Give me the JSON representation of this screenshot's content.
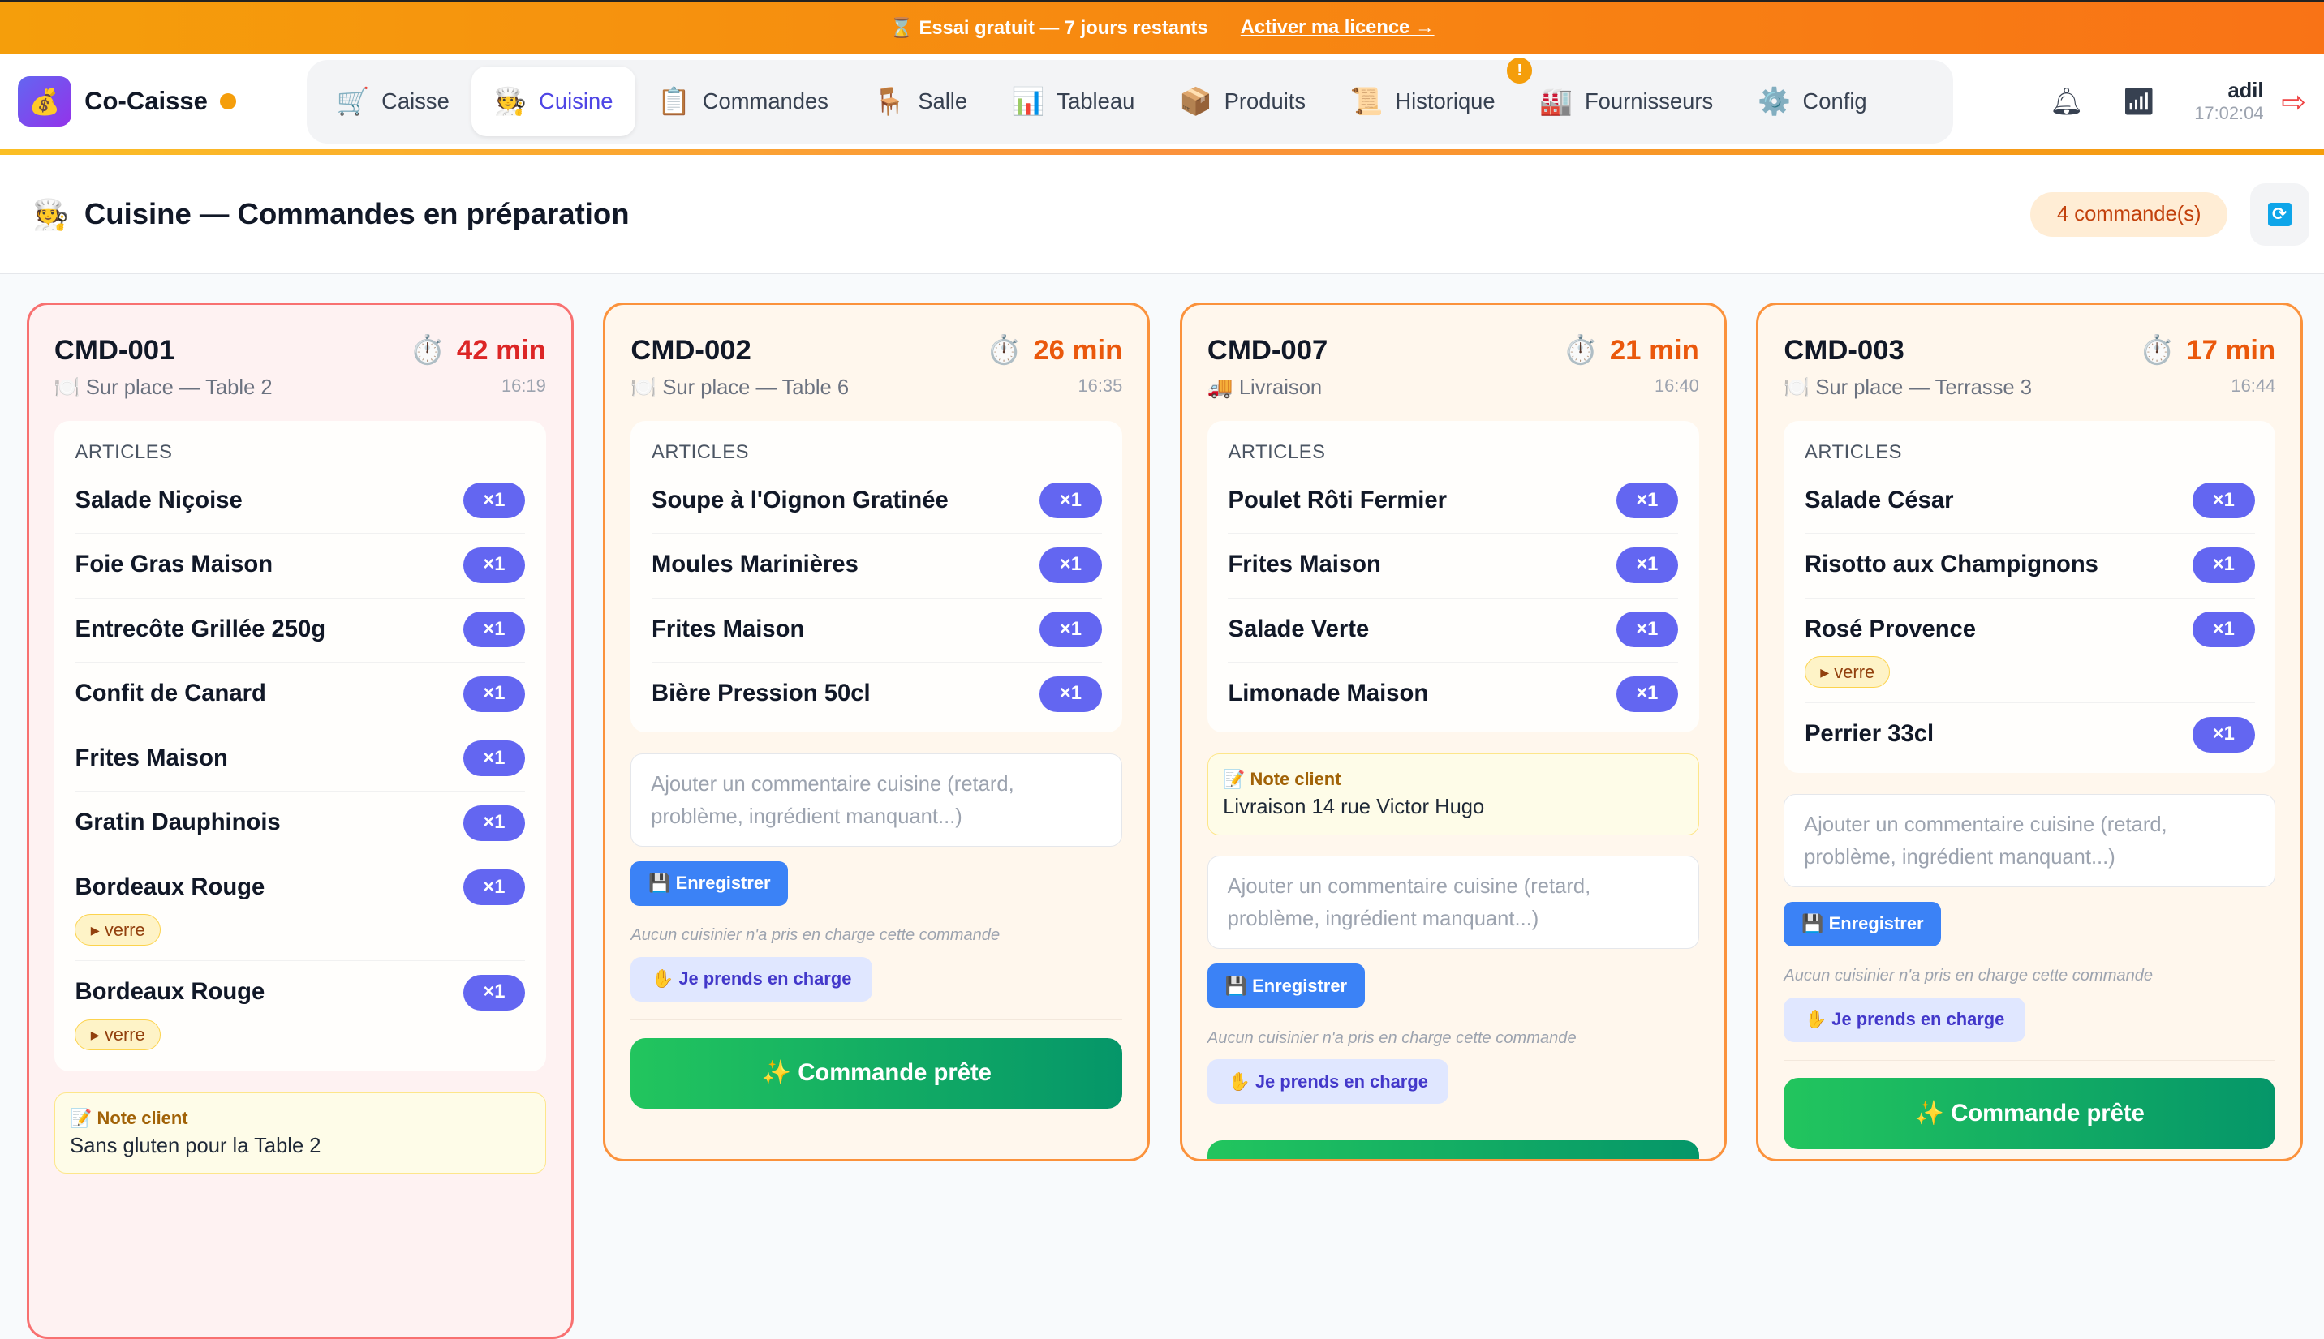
{
  "banner": {
    "text": "⌛ Essai gratuit — 7 jours restants",
    "link": "Activer ma licence →"
  },
  "app": {
    "logo_icon": "💰",
    "name": "Co-Caisse"
  },
  "nav": [
    {
      "icon": "🛒",
      "label": "Caisse"
    },
    {
      "icon": "🧑‍🍳",
      "label": "Cuisine",
      "active": true
    },
    {
      "icon": "📋",
      "label": "Commandes"
    },
    {
      "icon": "🪑",
      "label": "Salle"
    },
    {
      "icon": "📊",
      "label": "Tableau"
    },
    {
      "icon": "📦",
      "label": "Produits"
    },
    {
      "icon": "📜",
      "label": "Historique",
      "alert": "!"
    },
    {
      "icon": "🏭",
      "label": "Fournisseurs"
    },
    {
      "icon": "⚙️",
      "label": "Config"
    }
  ],
  "user": {
    "name": "adil",
    "time": "17:02:04",
    "bell_icon": "bell-icon",
    "stats_icon": "bar-chart-icon",
    "logout_icon": "logout-icon"
  },
  "page": {
    "icon": "🧑‍🍳",
    "title": "Cuisine — Commandes en préparation",
    "count": "4 commande(s)",
    "refresh_icon": "🔄"
  },
  "labels": {
    "articles": "ARTICLES",
    "note": "📝 Note client",
    "placeholder": "Ajouter un commentaire cuisine (retard, problème, ingrédient manquant...)",
    "save": "💾 Enregistrer",
    "none": "Aucun cuisinier n'a pris en charge cette commande",
    "take": "✋ Je prends en charge",
    "ready": "✨ Commande prête",
    "timer_icon": "⏱️"
  },
  "colors": {
    "accent": "#6366f1",
    "late": "#dc2626",
    "warn": "#ea580c",
    "ready": "#22c55e",
    "save": "#3b82f6"
  },
  "orders": [
    {
      "id": "CMD-001",
      "elapsed": "42 min",
      "late": true,
      "type_icon": "🍽️",
      "type": "Sur place — Table 2",
      "time": "16:19",
      "items": [
        {
          "name": "Salade Niçoise",
          "qty": "×1"
        },
        {
          "name": "Foie Gras Maison",
          "qty": "×1"
        },
        {
          "name": "Entrecôte Grillée 250g",
          "qty": "×1"
        },
        {
          "name": "Confit de Canard",
          "qty": "×1"
        },
        {
          "name": "Frites Maison",
          "qty": "×1"
        },
        {
          "name": "Gratin Dauphinois",
          "qty": "×1"
        },
        {
          "name": "Bordeaux Rouge",
          "qty": "×1",
          "option": "▸ verre"
        },
        {
          "name": "Bordeaux Rouge",
          "qty": "×1",
          "option": "▸ verre"
        }
      ],
      "note": "Sans gluten pour la Table 2"
    },
    {
      "id": "CMD-002",
      "elapsed": "26 min",
      "type_icon": "🍽️",
      "type": "Sur place — Table 6",
      "time": "16:35",
      "items": [
        {
          "name": "Soupe à l'Oignon Gratinée",
          "qty": "×1"
        },
        {
          "name": "Moules Marinières",
          "qty": "×1"
        },
        {
          "name": "Frites Maison",
          "qty": "×1"
        },
        {
          "name": "Bière Pression 50cl",
          "qty": "×1"
        }
      ]
    },
    {
      "id": "CMD-007",
      "elapsed": "21 min",
      "type_icon": "🚚",
      "type": "Livraison",
      "time": "16:40",
      "items": [
        {
          "name": "Poulet Rôti Fermier",
          "qty": "×1"
        },
        {
          "name": "Frites Maison",
          "qty": "×1"
        },
        {
          "name": "Salade Verte",
          "qty": "×1"
        },
        {
          "name": "Limonade Maison",
          "qty": "×1"
        }
      ],
      "note": "Livraison 14 rue Victor Hugo"
    },
    {
      "id": "CMD-003",
      "elapsed": "17 min",
      "type_icon": "🍽️",
      "type": "Sur place — Terrasse 3",
      "time": "16:44",
      "items": [
        {
          "name": "Salade César",
          "qty": "×1"
        },
        {
          "name": "Risotto aux Champignons",
          "qty": "×1"
        },
        {
          "name": "Rosé Provence",
          "qty": "×1",
          "option": "▸ verre"
        },
        {
          "name": "Perrier 33cl",
          "qty": "×1"
        }
      ]
    }
  ]
}
